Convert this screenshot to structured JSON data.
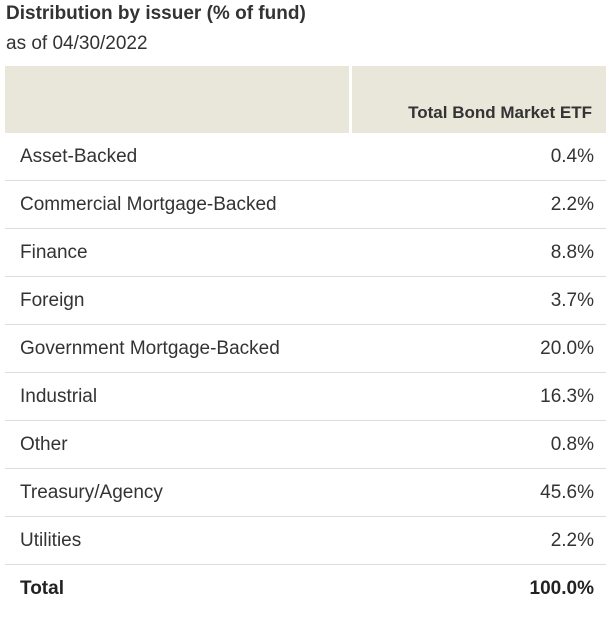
{
  "title": "Distribution by issuer (% of fund)",
  "subtitle": "as of 04/30/2022",
  "header": {
    "col1": "",
    "col2": "Total Bond Market ETF"
  },
  "rows": [
    {
      "label": "Asset-Backed",
      "value": "0.4%"
    },
    {
      "label": "Commercial Mortgage-Backed",
      "value": "2.2%"
    },
    {
      "label": "Finance",
      "value": "8.8%"
    },
    {
      "label": "Foreign",
      "value": "3.7%"
    },
    {
      "label": "Government Mortgage-Backed",
      "value": "20.0%"
    },
    {
      "label": "Industrial",
      "value": "16.3%"
    },
    {
      "label": "Other",
      "value": "0.8%"
    },
    {
      "label": "Treasury/Agency",
      "value": "45.6%"
    },
    {
      "label": "Utilities",
      "value": "2.2%"
    }
  ],
  "total": {
    "label": "Total",
    "value": "100.0%"
  },
  "chart_data": {
    "type": "table",
    "title": "Distribution by issuer (% of fund)",
    "subtitle": "as of 04/30/2022",
    "columns": [
      "",
      "Total Bond Market ETF"
    ],
    "categories": [
      "Asset-Backed",
      "Commercial Mortgage-Backed",
      "Finance",
      "Foreign",
      "Government Mortgage-Backed",
      "Industrial",
      "Other",
      "Treasury/Agency",
      "Utilities",
      "Total"
    ],
    "values": [
      0.4,
      2.2,
      8.8,
      3.7,
      20.0,
      16.3,
      0.8,
      45.6,
      2.2,
      100.0
    ],
    "unit": "%"
  },
  "colors": {
    "header_bg": "#e9e6da",
    "row_divider": "#dddddd",
    "text": "#333333"
  }
}
